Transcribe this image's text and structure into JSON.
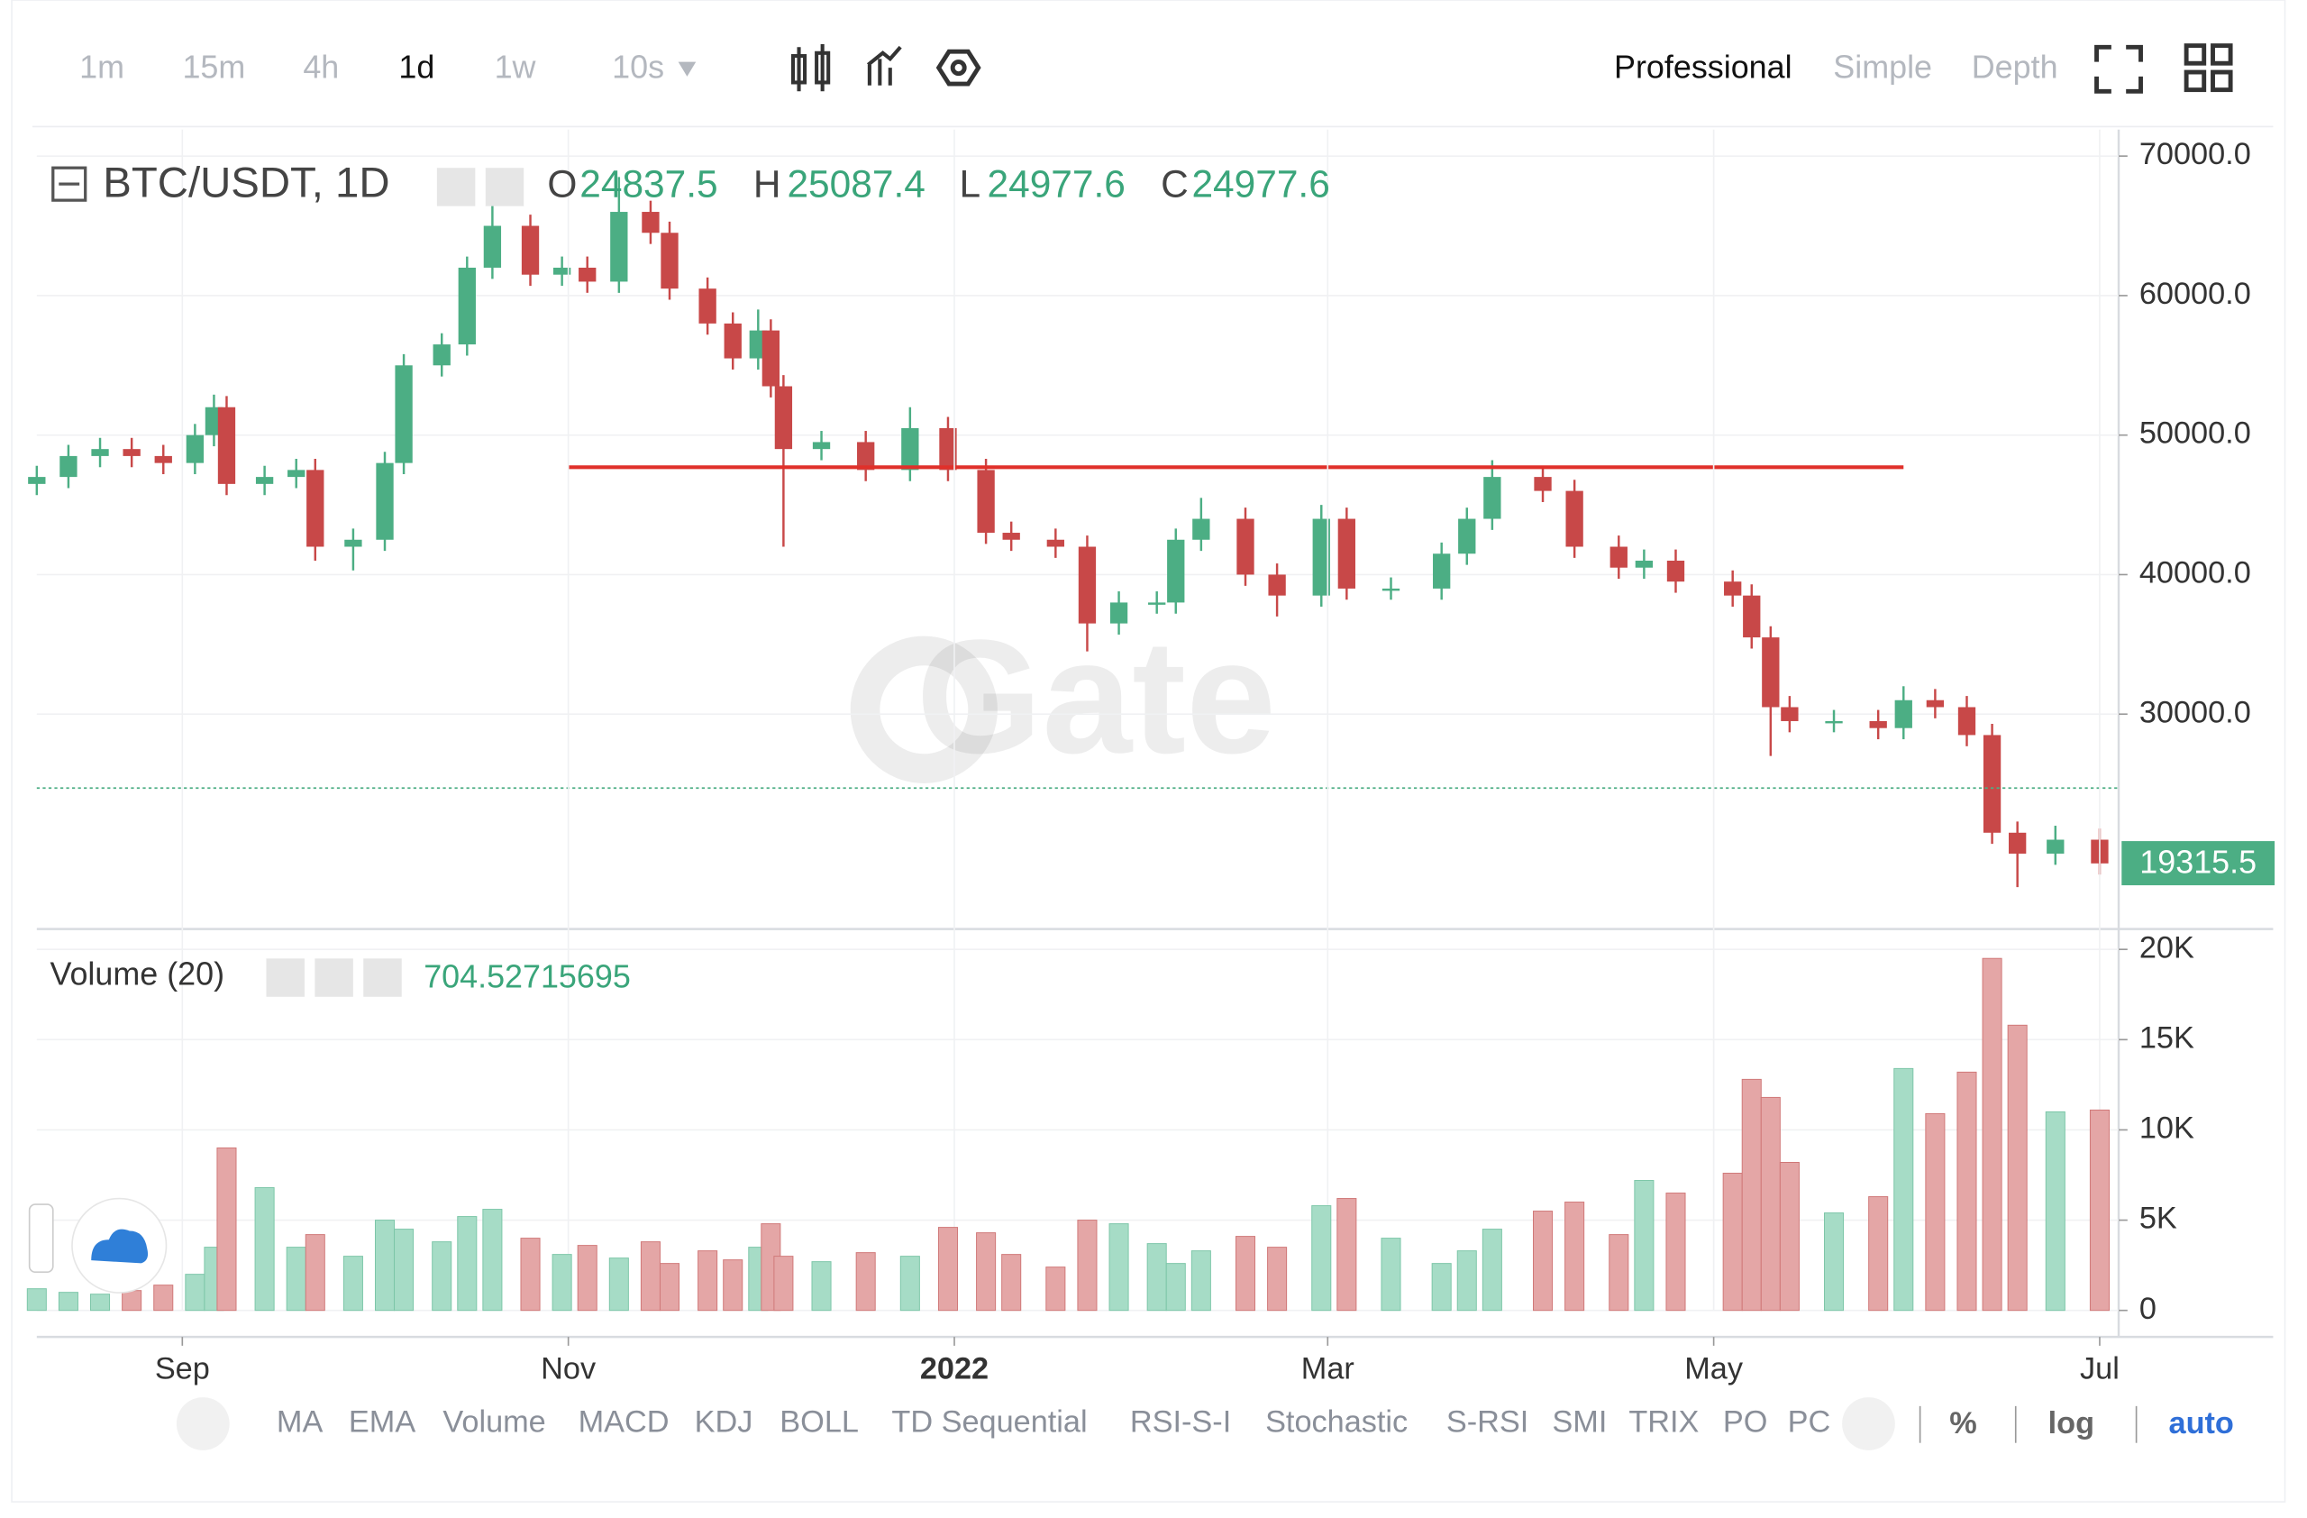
{
  "toolbar": {
    "intervals": [
      "1m",
      "15m",
      "4h",
      "1d",
      "1w",
      "10s"
    ],
    "modes": [
      "Professional",
      "Simple",
      "Depth"
    ]
  },
  "watermark": "Gate",
  "legend": {
    "symbol": "BTC/USDT, 1D",
    "labels": [
      "O",
      "H",
      "L",
      "C"
    ],
    "values": [
      24837.5,
      25087.4,
      24977.6,
      24977.6
    ]
  },
  "volume_legend": {
    "title": "Volume (20)",
    "value": 704.52715695
  },
  "indicators": [
    "MA",
    "EMA",
    "Volume",
    "MACD",
    "KDJ",
    "BOLL",
    "TD Sequential",
    "RSI-S-I",
    "Stochastic",
    "S-RSI",
    "SMI",
    "TRIX",
    "PO",
    "PC"
  ],
  "scale_options": [
    "%",
    "log",
    "auto"
  ],
  "chart_data": [
    {
      "type": "candlestick",
      "up_color": "#4cae84",
      "down_color": "#c84848",
      "x": [
        0,
        5,
        10,
        15,
        20,
        25,
        28,
        30,
        36,
        41,
        44,
        50,
        55,
        58,
        64,
        68,
        72,
        78,
        83,
        87,
        92,
        97,
        100,
        106,
        110,
        114,
        116,
        118,
        124,
        131,
        138,
        144,
        150,
        154,
        161,
        166,
        171,
        177,
        180,
        184,
        191,
        196,
        203,
        207,
        214,
        222,
        226,
        230,
        238,
        243,
        250,
        254,
        259,
        268,
        271,
        274,
        277,
        284,
        291,
        295,
        300,
        305,
        309,
        313,
        319,
        326
      ],
      "open": [
        46500,
        47000,
        48500,
        49000,
        48500,
        48000,
        50000,
        52000,
        46500,
        47000,
        47500,
        42000,
        42500,
        48000,
        55000,
        56500,
        62000,
        65000,
        61500,
        62000,
        61000,
        66000,
        64500,
        60500,
        58000,
        55500,
        57500,
        53500,
        49000,
        49500,
        47500,
        50500,
        47500,
        43000,
        42500,
        42000,
        36500,
        38000,
        38000,
        42500,
        44000,
        40000,
        38500,
        44000,
        39000,
        39000,
        41500,
        44000,
        47000,
        46000,
        42000,
        40500,
        41000,
        39500,
        38500,
        35500,
        30500,
        29500,
        29500,
        29000,
        31000,
        30500,
        28500,
        21500,
        20000,
        21000
      ],
      "high": [
        47800,
        49300,
        49800,
        49800,
        49300,
        50800,
        52900,
        52800,
        47800,
        48300,
        48300,
        43300,
        48800,
        55800,
        57300,
        62800,
        67000,
        65800,
        62800,
        62800,
        68500,
        66800,
        65300,
        61300,
        58800,
        59000,
        58300,
        54300,
        50300,
        50300,
        52000,
        51300,
        48300,
        43800,
        43300,
        42800,
        38800,
        38800,
        43300,
        45500,
        44800,
        40800,
        45000,
        44800,
        39800,
        42300,
        44800,
        48200,
        47800,
        46800,
        42800,
        41800,
        41800,
        40300,
        39300,
        36300,
        31300,
        30300,
        30300,
        32000,
        31800,
        31300,
        29300,
        22300,
        22000,
        21800
      ],
      "low": [
        45700,
        46200,
        47700,
        47700,
        47200,
        47200,
        49200,
        45700,
        45700,
        46200,
        41000,
        40300,
        41700,
        47200,
        54200,
        55700,
        61200,
        60700,
        60700,
        60200,
        60200,
        63700,
        59700,
        57200,
        54700,
        54700,
        52700,
        42000,
        48200,
        46700,
        46700,
        46700,
        42200,
        41700,
        41200,
        34500,
        35700,
        37200,
        37200,
        41700,
        39200,
        37000,
        37700,
        38200,
        38200,
        38200,
        40700,
        43200,
        45200,
        41200,
        39700,
        39700,
        38700,
        37700,
        34700,
        27000,
        28700,
        28700,
        28200,
        28200,
        29700,
        27700,
        20700,
        17600,
        19200,
        18500
      ],
      "close": [
        47000,
        48500,
        49000,
        48500,
        48000,
        50000,
        52000,
        46500,
        47000,
        47500,
        42000,
        42500,
        48000,
        55000,
        56500,
        62000,
        65000,
        61500,
        62000,
        61000,
        66000,
        64500,
        60500,
        58000,
        55500,
        57500,
        53500,
        49000,
        49500,
        47500,
        50500,
        47500,
        43000,
        42500,
        42000,
        36500,
        38000,
        38000,
        42500,
        44000,
        40000,
        38500,
        44000,
        39000,
        39000,
        41500,
        44000,
        47000,
        46000,
        42000,
        40500,
        41000,
        39500,
        38500,
        35500,
        30500,
        29500,
        29500,
        29000,
        31000,
        30500,
        28500,
        21500,
        20000,
        21000,
        19300
      ],
      "xlim": [
        0,
        329
      ],
      "ylim": [
        14700,
        71900
      ],
      "yticks": [
        {
          "value": 30000,
          "label": "30000.0"
        },
        {
          "value": 40000,
          "label": "40000.0"
        },
        {
          "value": 50000,
          "label": "50000.0"
        },
        {
          "value": 60000,
          "label": "60000.0"
        },
        {
          "value": 70000,
          "label": "70000.0"
        }
      ],
      "grid": true,
      "trend_line": {
        "value": 47700,
        "x": [
          84,
          295
        ],
        "color": "#e0302a"
      },
      "price_line": {
        "value": 24700,
        "color": "#4cae84"
      },
      "last_price": 19315.5
    },
    {
      "type": "bar",
      "up_color": "#a6dcc6",
      "down_color": "#e4a6a6",
      "x": [
        0,
        5,
        10,
        15,
        20,
        25,
        28,
        30,
        36,
        41,
        44,
        50,
        55,
        58,
        64,
        68,
        72,
        78,
        83,
        87,
        92,
        97,
        100,
        106,
        110,
        114,
        116,
        118,
        124,
        131,
        138,
        144,
        150,
        154,
        161,
        166,
        171,
        177,
        180,
        184,
        191,
        196,
        203,
        207,
        214,
        222,
        226,
        230,
        238,
        243,
        250,
        254,
        259,
        268,
        271,
        274,
        277,
        284,
        291,
        295,
        300,
        305,
        309,
        313,
        319,
        326
      ],
      "values": [
        1200,
        1000,
        900,
        1100,
        1400,
        2000,
        3500,
        9000,
        6800,
        3500,
        4200,
        3000,
        5000,
        4500,
        3800,
        5200,
        5600,
        4000,
        3100,
        3600,
        2900,
        3800,
        2600,
        3300,
        2800,
        3500,
        4800,
        3000,
        2700,
        3200,
        3000,
        4600,
        4300,
        3100,
        2400,
        5000,
        4800,
        3700,
        2600,
        3300,
        4100,
        3500,
        5800,
        6200,
        4000,
        2600,
        3300,
        4500,
        5500,
        6000,
        4200,
        7200,
        6500,
        7600,
        12800,
        11800,
        8200,
        5400,
        6300,
        13400,
        10900,
        13200,
        19500,
        15800,
        11000,
        11100
      ],
      "xlim": [
        0,
        329
      ],
      "ylim": [
        0,
        20800
      ],
      "yticks": [
        0,
        {
          "value": 5000,
          "label": "5K"
        },
        {
          "value": 10000,
          "label": "10K"
        },
        {
          "value": 15000,
          "label": "15K"
        },
        {
          "value": 20000,
          "label": "20K"
        }
      ],
      "xticks": [
        {
          "value": 23,
          "label": "Sep"
        },
        {
          "value": 84,
          "label": "Nov"
        },
        {
          "value": 145,
          "label": "2022"
        },
        {
          "value": 204,
          "label": "Mar"
        },
        {
          "value": 265,
          "label": "May"
        },
        {
          "value": 326,
          "label": "Jul"
        }
      ],
      "grid": true
    }
  ]
}
